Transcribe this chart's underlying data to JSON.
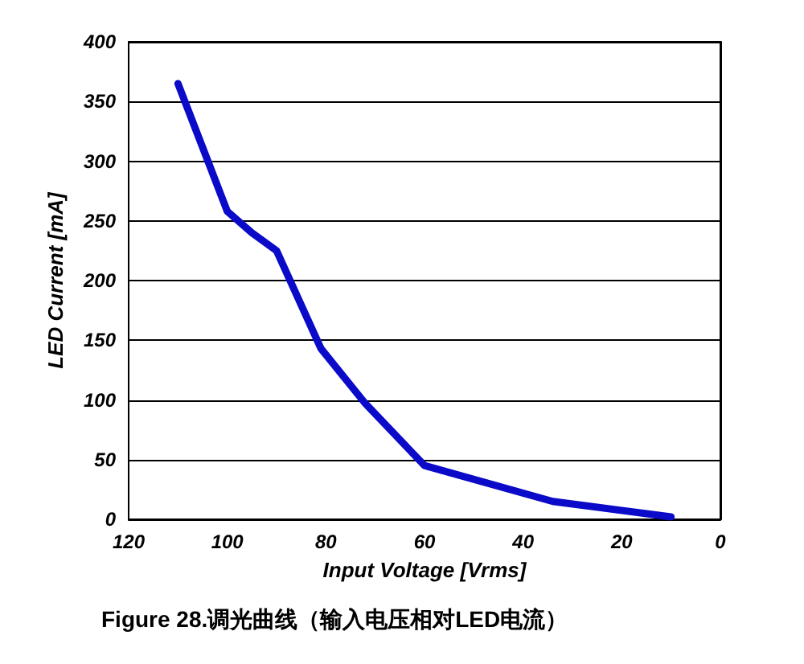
{
  "chart_data": {
    "type": "line",
    "title": "Figure 28.调光曲线（输入电压相对LED电流）",
    "xlabel": "Input Voltage [Vrms]",
    "ylabel": "LED Current [mA]",
    "x": [
      110,
      100,
      95,
      90,
      81,
      72,
      60,
      34,
      10
    ],
    "series": [
      {
        "color": "#0a0ac8",
        "values": [
          365,
          258,
          240,
          225,
          143,
          97,
          45,
          15,
          2
        ]
      }
    ],
    "xlim": [
      120,
      0
    ],
    "xticks": [
      120,
      100,
      80,
      60,
      40,
      20,
      0
    ],
    "ylim": [
      0,
      400
    ],
    "yticks": [
      0,
      50,
      100,
      150,
      200,
      250,
      300,
      350,
      400
    ],
    "grid": "y",
    "marker": "none",
    "line_style": "solid"
  }
}
